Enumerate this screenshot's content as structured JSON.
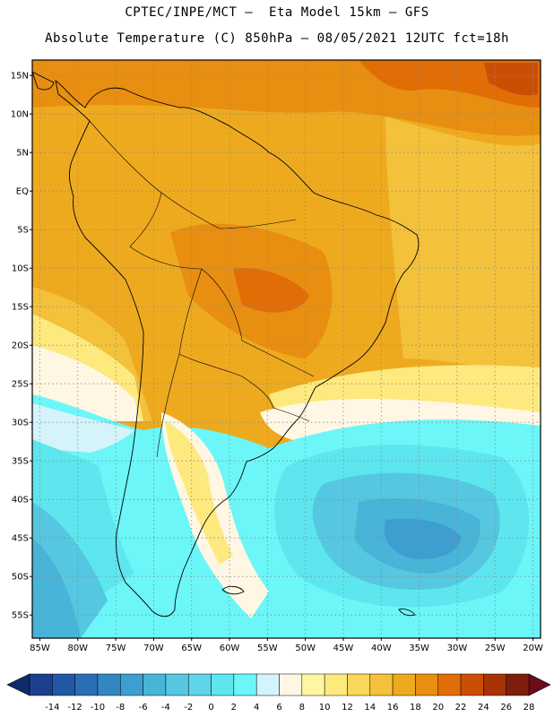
{
  "header": {
    "line1": "CPTEC/INPE/MCT –  Eta Model 15km – GFS",
    "line2": "Absolute Temperature (C) 850hPa – 08/05/2021 12UTC fct=18h"
  },
  "map": {
    "lat_labels": [
      "15N",
      "10N",
      "5N",
      "EQ",
      "5S",
      "10S",
      "15S",
      "20S",
      "25S",
      "30S",
      "35S",
      "40S",
      "45S",
      "50S",
      "55S"
    ],
    "lon_labels": [
      "85W",
      "80W",
      "75W",
      "70W",
      "65W",
      "60W",
      "55W",
      "50W",
      "45W",
      "40W",
      "35W",
      "30W",
      "25W",
      "20W"
    ],
    "lon_range": [
      -86,
      -19
    ],
    "lat_range": [
      -58,
      17
    ]
  },
  "colorbar": {
    "values": [
      "-14",
      "-12",
      "-10",
      "-8",
      "-6",
      "-4",
      "-2",
      "0",
      "2",
      "4",
      "6",
      "8",
      "10",
      "12",
      "14",
      "16",
      "18",
      "20",
      "22",
      "24",
      "26",
      "28"
    ],
    "colors": [
      "#1d3f8f",
      "#2358a6",
      "#2a6fb6",
      "#3287c3",
      "#3c9fcf",
      "#48b4d8",
      "#55c7e0",
      "#5fd6e8",
      "#5ee6ef",
      "#6cf6f8",
      "#d4f3fb",
      "#fff7e4",
      "#fff6a2",
      "#fde97e",
      "#f9d75a",
      "#f3c13a",
      "#eeaa1f",
      "#e88e10",
      "#e16d07",
      "#cb4e05",
      "#a83305",
      "#7e1e0c"
    ],
    "under_color": "#0c2c6c",
    "over_color": "#6a0c19"
  }
}
